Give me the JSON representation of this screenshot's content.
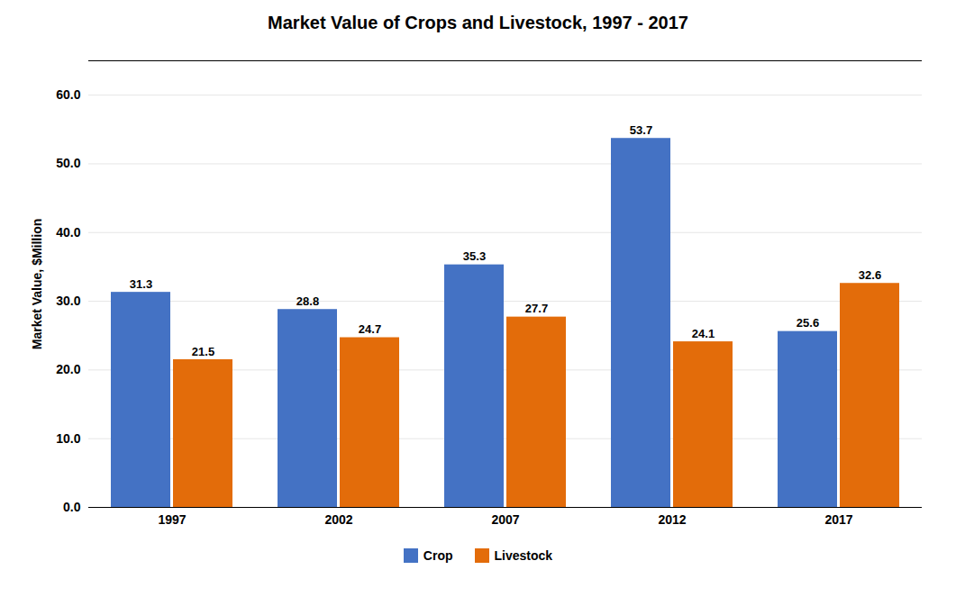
{
  "chart_data": {
    "type": "bar",
    "title": "Market Value of Crops and Livestock, 1997 - 2017",
    "ylabel": "Market Value, $Million",
    "categories": [
      "1997",
      "2002",
      "2007",
      "2012",
      "2017"
    ],
    "series": [
      {
        "name": "Crop",
        "color": "#4472C4",
        "values": [
          31.3,
          28.8,
          35.3,
          53.7,
          25.6
        ]
      },
      {
        "name": "Livestock",
        "color": "#E36C0A",
        "values": [
          21.5,
          24.7,
          27.7,
          24.1,
          32.6
        ]
      }
    ],
    "ylim": [
      0,
      65
    ],
    "yticks": [
      {
        "value": 0,
        "label": "0.0"
      },
      {
        "value": 10,
        "label": "10.0"
      },
      {
        "value": 20,
        "label": "20.0"
      },
      {
        "value": 30,
        "label": "30.0"
      },
      {
        "value": 40,
        "label": "40.0"
      },
      {
        "value": 50,
        "label": "50.0"
      },
      {
        "value": 60,
        "label": "60.0"
      }
    ],
    "grid": true,
    "data_labels": true,
    "legend": "bottom"
  }
}
